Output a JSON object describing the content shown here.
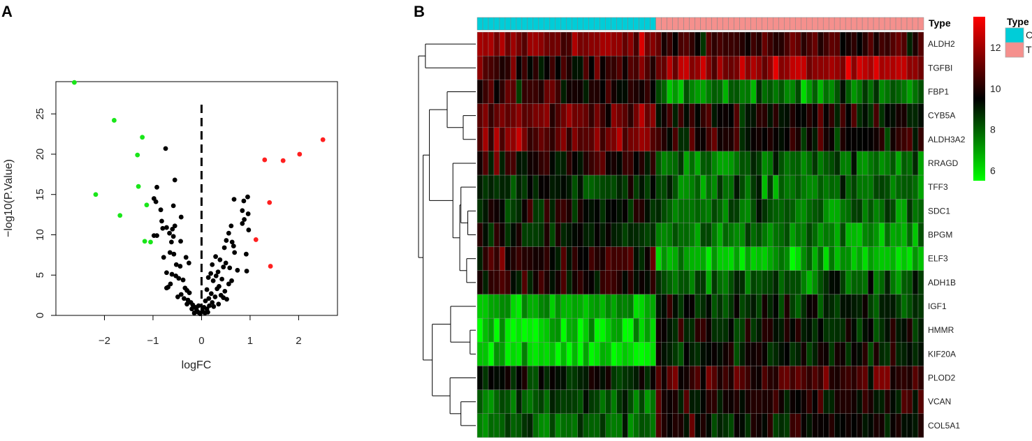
{
  "panels": {
    "a": "A",
    "b": "B"
  },
  "colors": {
    "up": "#ff1f1f",
    "down": "#19e619",
    "ns": "#000000",
    "type_C": "#00cdd8",
    "type_T": "#f5908d",
    "heat_low": "#00ff00",
    "heat_mid": "#000000",
    "heat_high": "#ff0000",
    "cell_border": "#888888"
  },
  "chart_data": [
    {
      "type": "scatter",
      "title": "",
      "xlabel": "logFC",
      "ylabel": "−log10(P.Value)",
      "xlim": [
        -3,
        2.8
      ],
      "ylim": [
        0,
        29
      ],
      "xticks": [
        -2,
        -1,
        0,
        1,
        2
      ],
      "xtick_labels": [
        "−2",
        "−1",
        "0",
        "1",
        "2"
      ],
      "yticks": [
        0,
        5,
        10,
        15,
        20,
        25
      ],
      "grid": false,
      "threshold_line_x": 0,
      "series": [
        {
          "group": "down",
          "points": [
            [
              -2.62,
              28.9
            ],
            [
              -1.8,
              24.2
            ],
            [
              -1.22,
              22.1
            ],
            [
              -1.32,
              19.9
            ],
            [
              -2.18,
              15.0
            ],
            [
              -1.3,
              16.0
            ],
            [
              -1.13,
              13.7
            ],
            [
              -1.68,
              12.4
            ],
            [
              -1.17,
              9.2
            ],
            [
              -1.05,
              9.1
            ]
          ]
        },
        {
          "group": "up",
          "points": [
            [
              2.5,
              21.8
            ],
            [
              2.02,
              20.0
            ],
            [
              1.3,
              19.3
            ],
            [
              1.68,
              19.2
            ],
            [
              1.4,
              14.0
            ],
            [
              1.12,
              9.4
            ],
            [
              1.42,
              6.1
            ]
          ]
        },
        {
          "group": "ns",
          "points": [
            [
              -0.74,
              20.7
            ],
            [
              -0.55,
              16.8
            ],
            [
              -0.92,
              15.9
            ],
            [
              -0.98,
              14.5
            ],
            [
              -0.94,
              14.1
            ],
            [
              -0.84,
              13.1
            ],
            [
              -0.82,
              11.7
            ],
            [
              -0.6,
              10.7
            ],
            [
              -0.58,
              9.8
            ],
            [
              -0.55,
              11.1
            ],
            [
              -0.42,
              12.2
            ],
            [
              -0.58,
              13.6
            ],
            [
              -0.98,
              9.9
            ],
            [
              -0.92,
              9.9
            ],
            [
              -0.8,
              10.8
            ],
            [
              -0.66,
              10.2
            ],
            [
              -0.72,
              10.9
            ],
            [
              -0.62,
              9.1
            ],
            [
              -0.43,
              9.2
            ],
            [
              -0.65,
              7.8
            ],
            [
              -0.57,
              7.6
            ],
            [
              -0.78,
              7.2
            ],
            [
              -0.32,
              7.2
            ],
            [
              -0.26,
              6.5
            ],
            [
              -0.52,
              6.3
            ],
            [
              -0.44,
              6.1
            ],
            [
              -0.72,
              5.3
            ],
            [
              -0.61,
              5.1
            ],
            [
              -0.53,
              4.9
            ],
            [
              -0.47,
              4.6
            ],
            [
              -0.38,
              4.4
            ],
            [
              -0.64,
              3.9
            ],
            [
              -0.69,
              3.5
            ],
            [
              -0.72,
              3.4
            ],
            [
              -0.34,
              3.4
            ],
            [
              -0.3,
              3.1
            ],
            [
              -0.25,
              2.8
            ],
            [
              -0.42,
              2.6
            ],
            [
              -0.49,
              2.3
            ],
            [
              -0.36,
              2.1
            ],
            [
              -0.28,
              1.9
            ],
            [
              -0.22,
              1.6
            ],
            [
              -0.3,
              1.4
            ],
            [
              -0.18,
              1.3
            ],
            [
              -0.13,
              1.0
            ],
            [
              -0.2,
              0.8
            ],
            [
              -0.1,
              0.6
            ],
            [
              -0.07,
              0.4
            ],
            [
              -0.03,
              0.2
            ],
            [
              -0.15,
              0.3
            ],
            [
              -0.11,
              0.9
            ],
            [
              -0.06,
              1.2
            ],
            [
              0.95,
              14.7
            ],
            [
              0.67,
              14.4
            ],
            [
              0.87,
              14.2
            ],
            [
              0.84,
              13.0
            ],
            [
              0.96,
              12.6
            ],
            [
              0.88,
              11.9
            ],
            [
              0.84,
              11.4
            ],
            [
              0.97,
              10.6
            ],
            [
              0.61,
              11.1
            ],
            [
              0.56,
              10.2
            ],
            [
              0.51,
              9.3
            ],
            [
              0.63,
              9.1
            ],
            [
              0.66,
              8.6
            ],
            [
              0.47,
              8.4
            ],
            [
              0.68,
              7.8
            ],
            [
              0.92,
              7.6
            ],
            [
              0.29,
              7.3
            ],
            [
              0.38,
              6.9
            ],
            [
              0.5,
              6.5
            ],
            [
              0.22,
              6.3
            ],
            [
              0.45,
              6.0
            ],
            [
              0.58,
              5.9
            ],
            [
              0.93,
              5.5
            ],
            [
              0.74,
              5.6
            ],
            [
              0.34,
              5.4
            ],
            [
              0.19,
              5.2
            ],
            [
              0.3,
              4.9
            ],
            [
              0.14,
              4.7
            ],
            [
              0.42,
              4.5
            ],
            [
              0.24,
              4.3
            ],
            [
              0.62,
              4.3
            ],
            [
              0.56,
              3.9
            ],
            [
              0.36,
              3.6
            ],
            [
              0.11,
              3.2
            ],
            [
              0.32,
              3.3
            ],
            [
              0.48,
              3.0
            ],
            [
              0.2,
              2.7
            ],
            [
              0.4,
              2.5
            ],
            [
              0.28,
              2.3
            ],
            [
              0.15,
              2.1
            ],
            [
              0.52,
              2.0
            ],
            [
              0.08,
              1.8
            ],
            [
              0.22,
              1.6
            ],
            [
              0.35,
              1.4
            ],
            [
              0.16,
              1.2
            ],
            [
              0.05,
              1.0
            ],
            [
              0.11,
              0.8
            ],
            [
              0.02,
              0.5
            ],
            [
              0.07,
              0.3
            ],
            [
              0.13,
              0.4
            ],
            [
              0.25,
              1.1
            ],
            [
              0.45,
              2.2
            ]
          ]
        }
      ]
    },
    {
      "type": "heatmap",
      "title": "",
      "rows": [
        "ALDH2",
        "TGFBI",
        "FBP1",
        "CYB5A",
        "ALDH3A2",
        "RRAGD",
        "TFF3",
        "SDC1",
        "BPGM",
        "ELF3",
        "ADH1B",
        "IGF1",
        "HMMR",
        "KIF20A",
        "PLOD2",
        "VCAN",
        "COL5A1"
      ],
      "n_columns": 80,
      "groups": [
        {
          "name": "C",
          "count": 32
        },
        {
          "name": "T",
          "count": 48
        }
      ],
      "annotation_label": "Type",
      "legend_title": "Type",
      "legend_entries": [
        "C",
        "T"
      ],
      "color_scale": {
        "min": 5.5,
        "max": 13.5,
        "mid": 10,
        "ticks": [
          6,
          8,
          10,
          12
        ]
      },
      "row_means": [
        [
          12.0,
          10.8
        ],
        [
          10.8,
          12.4
        ],
        [
          10.6,
          8.2
        ],
        [
          11.6,
          10.3
        ],
        [
          11.6,
          10.3
        ],
        [
          10.4,
          8.3
        ],
        [
          9.4,
          8.3
        ],
        [
          9.8,
          8.2
        ],
        [
          9.5,
          7.9
        ],
        [
          10.5,
          7.3
        ],
        [
          10.3,
          8.6
        ],
        [
          7.3,
          9.5
        ],
        [
          6.7,
          9.8
        ],
        [
          6.6,
          9.9
        ],
        [
          9.5,
          11.0
        ],
        [
          8.6,
          10.3
        ],
        [
          8.5,
          10.0
        ]
      ],
      "dendrogram": "17-leaf hierarchical clustering of genes"
    }
  ]
}
